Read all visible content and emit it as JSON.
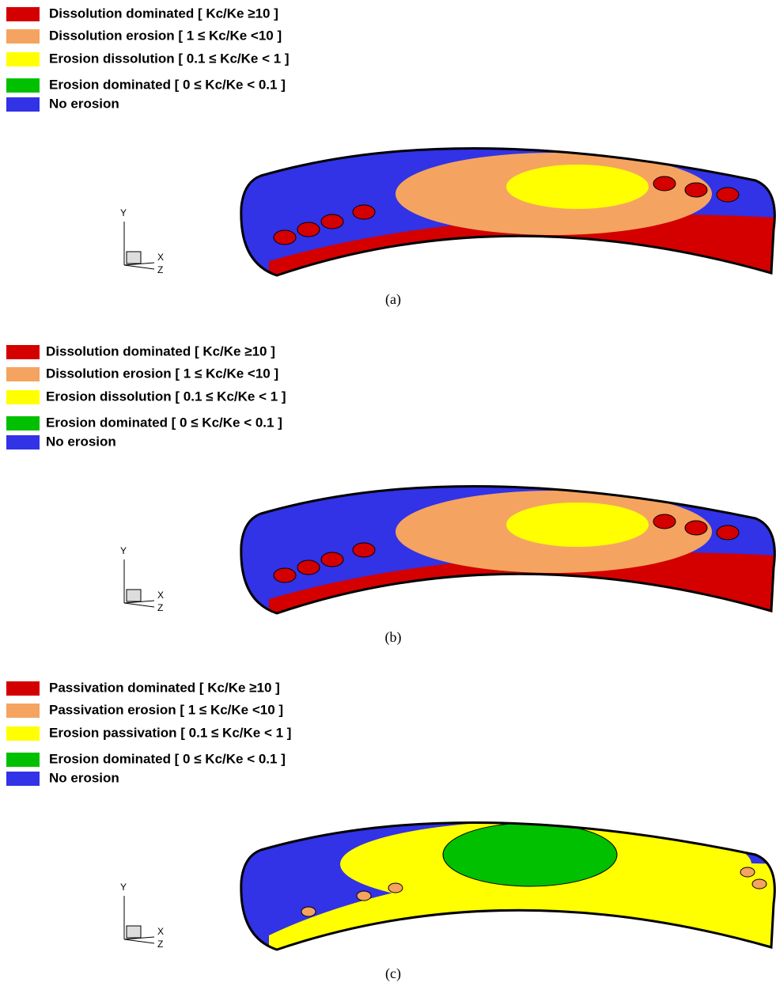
{
  "panels": [
    {
      "legend": [
        {
          "label": "Dissolution dominated [ Kc/Ke ≥10 ]",
          "color": "#d40000"
        },
        {
          "label": "Dissolution erosion [ 1 ≤ Kc/Ke <10 ]",
          "color": "#f4a460"
        },
        {
          "label": "Erosion dissolution [ 0.1 ≤ Kc/Ke < 1 ]",
          "color": "#ffff00"
        },
        {
          "label": "Erosion dominated [ 0 ≤ Kc/Ke < 0.1 ]",
          "color": "#00c000"
        },
        {
          "label": "No erosion",
          "color": "#3232e6"
        }
      ],
      "axes": {
        "y": "Y",
        "x": "X",
        "z": "Z"
      },
      "caption": "(a)"
    },
    {
      "legend": [
        {
          "label": "Dissolution dominated [ Kc/Ke ≥10 ]",
          "color": "#d40000"
        },
        {
          "label": "Dissolution erosion [ 1 ≤ Kc/Ke <10 ]",
          "color": "#f4a460"
        },
        {
          "label": "Erosion dissolution [ 0.1 ≤ Kc/Ke < 1 ]",
          "color": "#ffff00"
        },
        {
          "label": "Erosion dominated [ 0 ≤ Kc/Ke < 0.1 ]",
          "color": "#00c000"
        },
        {
          "label": "No erosion",
          "color": "#3232e6"
        }
      ],
      "axes": {
        "y": "Y",
        "x": "X",
        "z": "Z"
      },
      "caption": "(b)"
    },
    {
      "legend": [
        {
          "label": "Passivation dominated [ Kc/Ke ≥10 ]",
          "color": "#d40000"
        },
        {
          "label": "Passivation erosion [ 1 ≤ Kc/Ke <10 ]",
          "color": "#f4a460"
        },
        {
          "label": "Erosion passivation [ 0.1 ≤ Kc/Ke < 1 ]",
          "color": "#ffff00"
        },
        {
          "label": "Erosion dominated [ 0 ≤ Kc/Ke < 0.1 ]",
          "color": "#00c000"
        },
        {
          "label": "No erosion",
          "color": "#3232e6"
        }
      ],
      "axes": {
        "y": "Y",
        "x": "X",
        "z": "Z"
      },
      "caption": "(c)"
    }
  ]
}
